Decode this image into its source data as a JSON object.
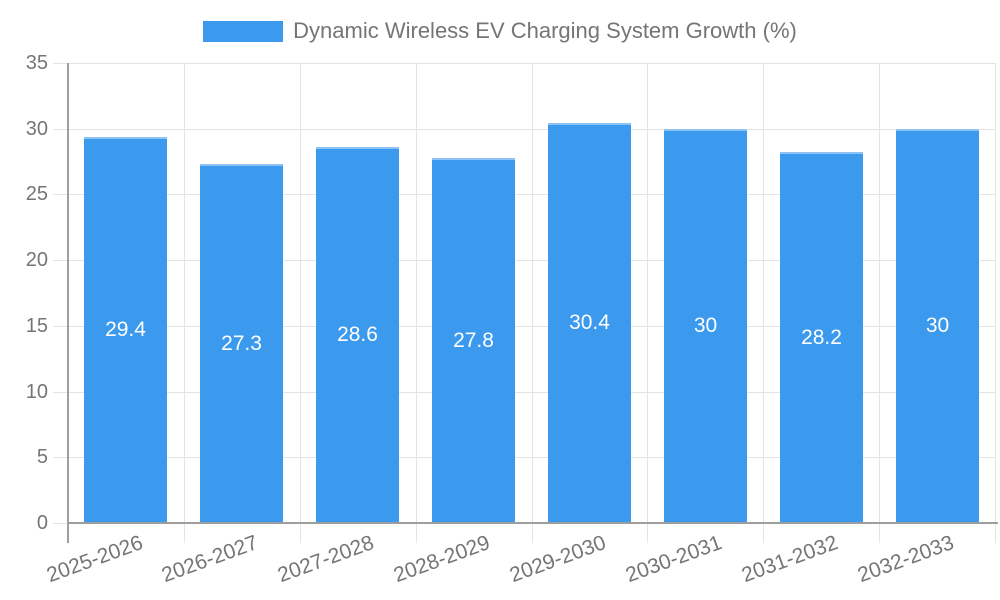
{
  "chart_data": {
    "type": "bar",
    "title": "Dynamic Wireless EV Charging System Growth (%)",
    "legend": {
      "position": "top",
      "label": "Dynamic Wireless EV Charging System Growth (%)"
    },
    "categories": [
      "2025-2026",
      "2026-2027",
      "2027-2028",
      "2028-2029",
      "2029-2030",
      "2030-2031",
      "2031-2032",
      "2032-2033"
    ],
    "values": [
      29.4,
      27.3,
      28.6,
      27.8,
      30.4,
      30,
      28.2,
      30
    ],
    "value_labels": [
      "29.4",
      "27.3",
      "28.6",
      "27.8",
      "30.4",
      "30",
      "28.2",
      "30"
    ],
    "xlabel": "",
    "ylabel": "",
    "ylim": [
      0,
      35
    ],
    "ytick_step": 5,
    "ytick_labels": [
      "0",
      "5",
      "10",
      "15",
      "20",
      "25",
      "30",
      "35"
    ],
    "grid": true,
    "x_tick_rotation_deg": -20,
    "colors": {
      "bar_fill": "#3B99EE",
      "bar_top_edge": "#8CC2F4",
      "grid_line": "#E4E4E4",
      "axis_line": "#9E9E9E",
      "tick_text": "#757575",
      "value_label_text": "#FFFFFF",
      "background": "#FFFFFF"
    }
  }
}
